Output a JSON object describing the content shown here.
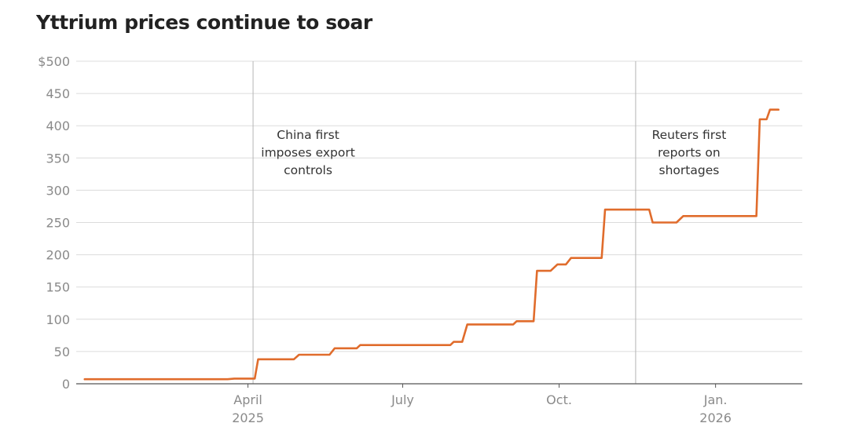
{
  "title": "Yttrium prices continue to soar",
  "colors": {
    "line": "#e06c2c",
    "grid": "#dcdcdc",
    "event": "#b5b5b5",
    "axis": "#555555",
    "text": "#222222"
  },
  "chart_data": {
    "type": "line",
    "title": "Yttrium prices continue to soar",
    "xlabel": "",
    "ylabel": "",
    "ylim": [
      0,
      500
    ],
    "xlim": [
      "2024-12-21",
      "2026-02-21"
    ],
    "y_ticks": [
      {
        "value": 500,
        "label": "$500"
      },
      {
        "value": 450,
        "label": "450"
      },
      {
        "value": 400,
        "label": "400"
      },
      {
        "value": 350,
        "label": "350"
      },
      {
        "value": 300,
        "label": "300"
      },
      {
        "value": 250,
        "label": "250"
      },
      {
        "value": 200,
        "label": "200"
      },
      {
        "value": 150,
        "label": "150"
      },
      {
        "value": 100,
        "label": "100"
      },
      {
        "value": 50,
        "label": "50"
      },
      {
        "value": 0,
        "label": "0"
      }
    ],
    "x_ticks": [
      {
        "date": "2025-04-01",
        "label": "April",
        "sublabel": "2025"
      },
      {
        "date": "2025-07-01",
        "label": "July",
        "sublabel": ""
      },
      {
        "date": "2025-10-01",
        "label": "Oct.",
        "sublabel": ""
      },
      {
        "date": "2026-01-01",
        "label": "Jan.",
        "sublabel": "2026"
      }
    ],
    "events": [
      {
        "date": "2025-04-04",
        "lines": [
          "China first",
          "imposes export",
          "controls"
        ]
      },
      {
        "date": "2025-11-15",
        "lines": [
          "Reuters first",
          "reports on",
          "shortages"
        ]
      }
    ],
    "series": [
      {
        "name": "Yttrium price",
        "points": [
          [
            "2024-12-26",
            7
          ],
          [
            "2025-03-20",
            7
          ],
          [
            "2025-03-24",
            8
          ],
          [
            "2025-04-05",
            8
          ],
          [
            "2025-04-07",
            38
          ],
          [
            "2025-04-28",
            38
          ],
          [
            "2025-05-01",
            45
          ],
          [
            "2025-05-19",
            45
          ],
          [
            "2025-05-22",
            55
          ],
          [
            "2025-06-04",
            55
          ],
          [
            "2025-06-06",
            60
          ],
          [
            "2025-07-29",
            60
          ],
          [
            "2025-07-31",
            65
          ],
          [
            "2025-08-05",
            65
          ],
          [
            "2025-08-08",
            92
          ],
          [
            "2025-09-04",
            92
          ],
          [
            "2025-09-06",
            97
          ],
          [
            "2025-09-16",
            97
          ],
          [
            "2025-09-18",
            175
          ],
          [
            "2025-09-26",
            175
          ],
          [
            "2025-09-30",
            185
          ],
          [
            "2025-10-05",
            185
          ],
          [
            "2025-10-08",
            195
          ],
          [
            "2025-10-26",
            195
          ],
          [
            "2025-10-28",
            270
          ],
          [
            "2025-11-23",
            270
          ],
          [
            "2025-11-25",
            250
          ],
          [
            "2025-12-09",
            250
          ],
          [
            "2025-12-13",
            260
          ],
          [
            "2026-01-25",
            260
          ],
          [
            "2026-01-27",
            410
          ],
          [
            "2026-01-31",
            410
          ],
          [
            "2026-02-02",
            425
          ],
          [
            "2026-02-07",
            425
          ]
        ]
      }
    ]
  }
}
